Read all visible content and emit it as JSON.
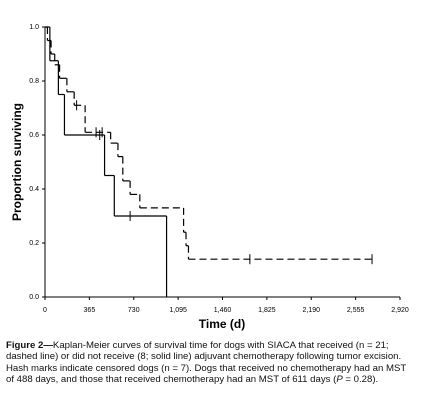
{
  "chart_data": {
    "type": "kaplan-meier",
    "y_label": "Proportion surviving",
    "x_label": "Time (d)",
    "xlim": [
      0,
      2920
    ],
    "ylim": [
      0,
      1
    ],
    "xticks": [
      0,
      365,
      730,
      {
        "value": 1095,
        "label": "1,095"
      },
      {
        "value": 1460,
        "label": "1,460"
      },
      {
        "value": 1825,
        "label": "1,825"
      },
      {
        "value": 2190,
        "label": "2,190"
      },
      {
        "value": 2555,
        "label": "2,555"
      },
      {
        "value": 2920,
        "label": "2,920"
      }
    ],
    "yticks": [
      {
        "value": 0,
        "label": "0.0"
      },
      0.2,
      0.4,
      0.6,
      0.8,
      {
        "value": 1,
        "label": "1.0"
      }
    ],
    "series": [
      {
        "style": "solid",
        "color": "#000000",
        "x": [
          0,
          40,
          110,
          160,
          490,
          570,
          1000
        ],
        "values": [
          1.0,
          0.875,
          0.75,
          0.6,
          0.45,
          0.3,
          0
        ],
        "censor_x": [
          450,
          700
        ],
        "censor_values": [
          0.6,
          0.3
        ]
      },
      {
        "style": "dashed",
        "color": "#000000",
        "x": [
          0,
          20,
          50,
          80,
          120,
          180,
          240,
          330,
          540,
          600,
          640,
          700,
          780,
          1140,
          1160,
          1180
        ],
        "values": [
          1.0,
          0.95,
          0.9,
          0.86,
          0.81,
          0.76,
          0.71,
          0.61,
          0.57,
          0.52,
          0.43,
          0.38,
          0.33,
          0.24,
          0.19,
          0.14
        ],
        "censor_x": [
          260,
          420,
          470,
          1685,
          2690
        ],
        "censor_values": [
          0.71,
          0.61,
          0.61,
          0.14,
          0.14
        ]
      }
    ]
  },
  "caption": {
    "label": "Figure 2—",
    "text_before": "Kaplan-Meier curves of survival time for dogs with SIACA that received (n = 21; dashed line) or did not receive (8; solid line) adjuvant chemotherapy following tumor excision. Hash marks indicate censored dogs (n = 7). Dogs that received no chemotherapy had an MST of 488 days, and those that received chemotherapy had an MST of 611 days (",
    "italic": "P",
    "text_after": " = 0.28)."
  }
}
